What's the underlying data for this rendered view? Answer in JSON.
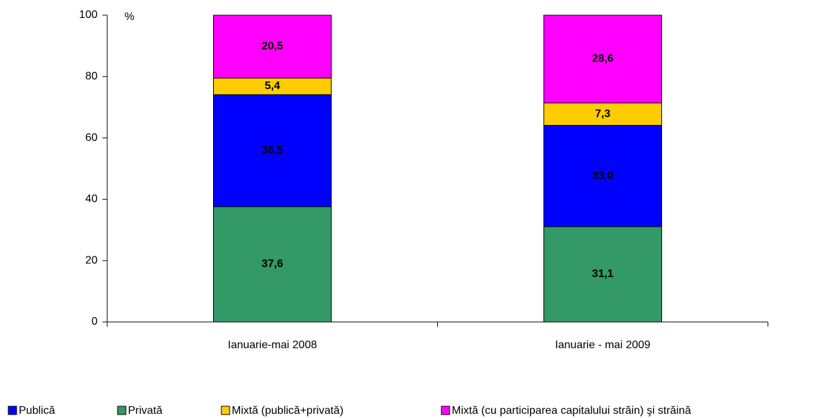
{
  "chart_data": {
    "type": "stacked_bar",
    "y_unit": "%",
    "categories": [
      "Ianuarie-mai 2008",
      "Ianuarie - mai 2009"
    ],
    "series": [
      {
        "name": "Publică",
        "color": "#0000ff",
        "values": [
          36.5,
          33.0
        ],
        "value_labels": [
          "36,5",
          "33,0"
        ]
      },
      {
        "name": "Privată",
        "color": "#339966",
        "values": [
          37.6,
          31.1
        ],
        "value_labels": [
          "37,6",
          "31,1"
        ]
      },
      {
        "name": "Mixtă (publică+privată)",
        "color": "#ffcc00",
        "values": [
          5.4,
          7.3
        ],
        "value_labels": [
          "5,4",
          "7,3"
        ]
      },
      {
        "name": "Mixtă (cu participarea capitalului străin) şi străină",
        "color": "#ff00ff",
        "values": [
          20.5,
          28.6
        ],
        "value_labels": [
          "20,5",
          "28,6"
        ]
      }
    ],
    "ylim": [
      0,
      100
    ],
    "yticks": [
      0,
      20,
      40,
      60,
      80,
      100
    ]
  }
}
